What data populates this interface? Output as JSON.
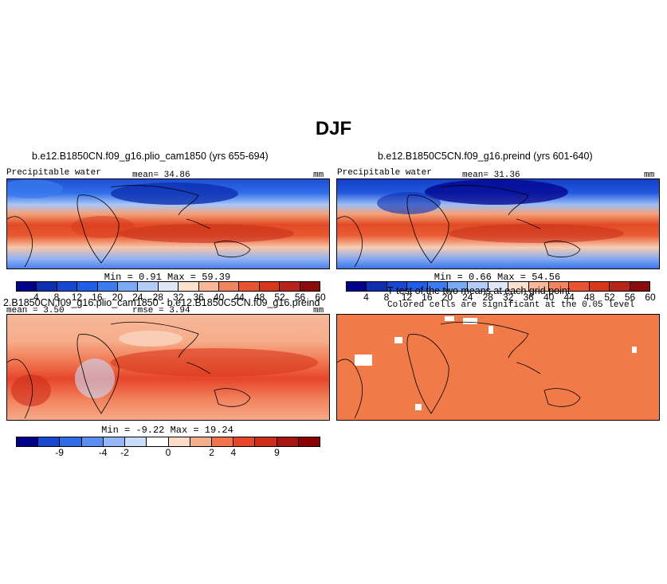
{
  "title": "DJF",
  "panels": [
    {
      "id": "p1",
      "title": "b.e12.B1850CN.f09_g16.plio_cam1850 (yrs 655-694)",
      "left_label": "Precipitable water",
      "center_label": "mean=  34.86",
      "right_label": "mm",
      "minmax": "Min =    0.91  Max =   59.39"
    },
    {
      "id": "p2",
      "title": "b.e12.B1850C5CN.f09_g16.preind (yrs 601-640)",
      "left_label": "Precipitable water",
      "center_label": "mean=  31.36",
      "right_label": "mm",
      "minmax": "Min =    0.66  Max =   54.56"
    },
    {
      "id": "p3",
      "title": "2.B1850CN.f09_g16.plio_cam1850 - b.e12.B1850C5CN.f09_g16.preind",
      "left_label": "mean =   3.50",
      "center_label": "rmse =   3.94",
      "right_label": "mm",
      "minmax": "Min =   -9.22  Max =   19.24"
    },
    {
      "id": "p4",
      "title": "T-test of the two means at each grid point",
      "subtitle": "Colored cells are significant at the 0.05 level"
    }
  ],
  "chart_data": [
    {
      "type": "heatmap",
      "title": "b.e12.B1850CN.f09_g16.plio_cam1850 (yrs 655-694)",
      "variable": "Precipitable water",
      "units": "mm",
      "mean": 34.86,
      "min": 0.91,
      "max": 59.39,
      "colorbar_levels": [
        4,
        8,
        12,
        16,
        20,
        24,
        28,
        32,
        36,
        40,
        44,
        48,
        52,
        56,
        60
      ],
      "colorbar_tick_labels": [
        "4",
        "8",
        "12",
        "16",
        "20",
        "24",
        "28",
        "32",
        "36",
        "40",
        "44",
        "48",
        "52",
        "56",
        "60"
      ]
    },
    {
      "type": "heatmap",
      "title": "b.e12.B1850C5CN.f09_g16.preind (yrs 601-640)",
      "variable": "Precipitable water",
      "units": "mm",
      "mean": 31.36,
      "min": 0.66,
      "max": 54.56,
      "colorbar_levels": [
        4,
        8,
        12,
        16,
        20,
        24,
        28,
        32,
        36,
        40,
        44,
        48,
        52,
        56,
        60
      ],
      "colorbar_tick_labels": [
        "4",
        "8",
        "12",
        "16",
        "20",
        "24",
        "28",
        "32",
        "36",
        "40",
        "44",
        "48",
        "52",
        "56",
        "60"
      ]
    },
    {
      "type": "heatmap",
      "title": "2.B1850CN.f09_g16.plio_cam1850 - b.e12.B1850C5CN.f09_g16.preind",
      "units": "mm",
      "mean": 3.5,
      "rmse": 3.94,
      "min": -9.22,
      "max": 19.24,
      "colorbar_tick_labels": [
        "-9",
        "-4",
        "-2",
        "0",
        "2",
        "4",
        "9"
      ]
    },
    {
      "type": "heatmap",
      "title": "T-test of the two means at each grid point",
      "subtitle": "Colored cells are significant at the 0.05 level",
      "significance_level": 0.05
    }
  ],
  "colors": {
    "abs_scale": [
      "#00008b",
      "#0d2fb0",
      "#1848d0",
      "#1f5ee6",
      "#3b7cf0",
      "#7aa9f6",
      "#b4cdf8",
      "#dee8f9",
      "#fbe0cf",
      "#f8b898",
      "#f2845e",
      "#e9532f",
      "#d8391d",
      "#b8241a",
      "#8b0c0c"
    ],
    "diff_scale": [
      "#00008b",
      "#1848d0",
      "#2f6de8",
      "#5b8ef2",
      "#95b7f6",
      "#c9dcfa",
      "#ffffff",
      "#fbdcc8",
      "#f6ad8a",
      "#f0754f",
      "#e6462a",
      "#cf2d1a",
      "#a81410",
      "#8b0000"
    ],
    "ttest_fill": "#f07a48",
    "land_outline": "#000000"
  }
}
